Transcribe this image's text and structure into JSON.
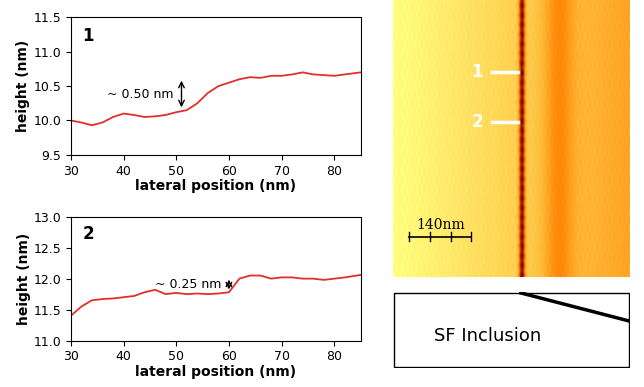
{
  "chart_data": [
    {
      "type": "line",
      "title": "1",
      "x_label": "lateral position (nm)",
      "y_label": "height (nm)",
      "color": "#e0302a",
      "x": [
        30,
        32,
        34,
        36,
        38,
        40,
        42,
        44,
        46,
        48,
        50,
        52,
        54,
        56,
        58,
        60,
        62,
        64,
        66,
        68,
        70,
        72,
        74,
        76,
        78,
        80,
        82,
        85
      ],
      "values": [
        10.0,
        9.97,
        9.93,
        9.97,
        10.05,
        10.1,
        10.08,
        10.05,
        10.06,
        10.08,
        10.12,
        10.15,
        10.25,
        10.4,
        10.5,
        10.55,
        10.6,
        10.63,
        10.62,
        10.65,
        10.65,
        10.67,
        10.7,
        10.67,
        10.66,
        10.65,
        10.67,
        10.7
      ],
      "xlim": [
        30,
        85
      ],
      "xticks": [
        30,
        40,
        50,
        60,
        70,
        80
      ],
      "ylim": [
        9.5,
        11.5
      ],
      "yticks": [
        9.5,
        {
          "value": 10,
          "label": "10.0"
        },
        10.5,
        {
          "value": 11,
          "label": "11.0"
        },
        11.5
      ],
      "annotation": {
        "text": "~ 0.50 nm",
        "x": 51,
        "y_from": 10.15,
        "y_to": 10.62
      }
    },
    {
      "type": "line",
      "title": "2",
      "x_label": "lateral position (nm)",
      "y_label": "height (nm)",
      "color": "#e0302a",
      "x": [
        30,
        32,
        34,
        36,
        38,
        40,
        42,
        44,
        46,
        48,
        50,
        52,
        54,
        56,
        58,
        60,
        62,
        64,
        66,
        68,
        70,
        72,
        74,
        76,
        78,
        80,
        82,
        85
      ],
      "values": [
        11.4,
        11.55,
        11.65,
        11.67,
        11.68,
        11.7,
        11.72,
        11.78,
        11.82,
        11.75,
        11.77,
        11.75,
        11.76,
        11.75,
        11.76,
        11.78,
        12.0,
        12.05,
        12.05,
        12.0,
        12.02,
        12.02,
        12.0,
        12.0,
        11.98,
        12.0,
        12.02,
        12.06
      ],
      "xlim": [
        30,
        85
      ],
      "xticks": [
        30,
        40,
        50,
        60,
        70,
        80
      ],
      "ylim": [
        11.0,
        13.0
      ],
      "yticks": [
        {
          "value": 11,
          "label": "11.0"
        },
        11.5,
        {
          "value": 12,
          "label": "12.0"
        },
        12.5,
        {
          "value": 13,
          "label": "13.0"
        }
      ],
      "annotation": {
        "text": "~ 0.25 nm",
        "x": 60,
        "y_from": 11.78,
        "y_to": 12.03
      }
    }
  ],
  "image": {
    "markers": [
      "1",
      "2"
    ],
    "scale_bar": "140nm"
  },
  "schematic": {
    "label": "SF Inclusion"
  }
}
